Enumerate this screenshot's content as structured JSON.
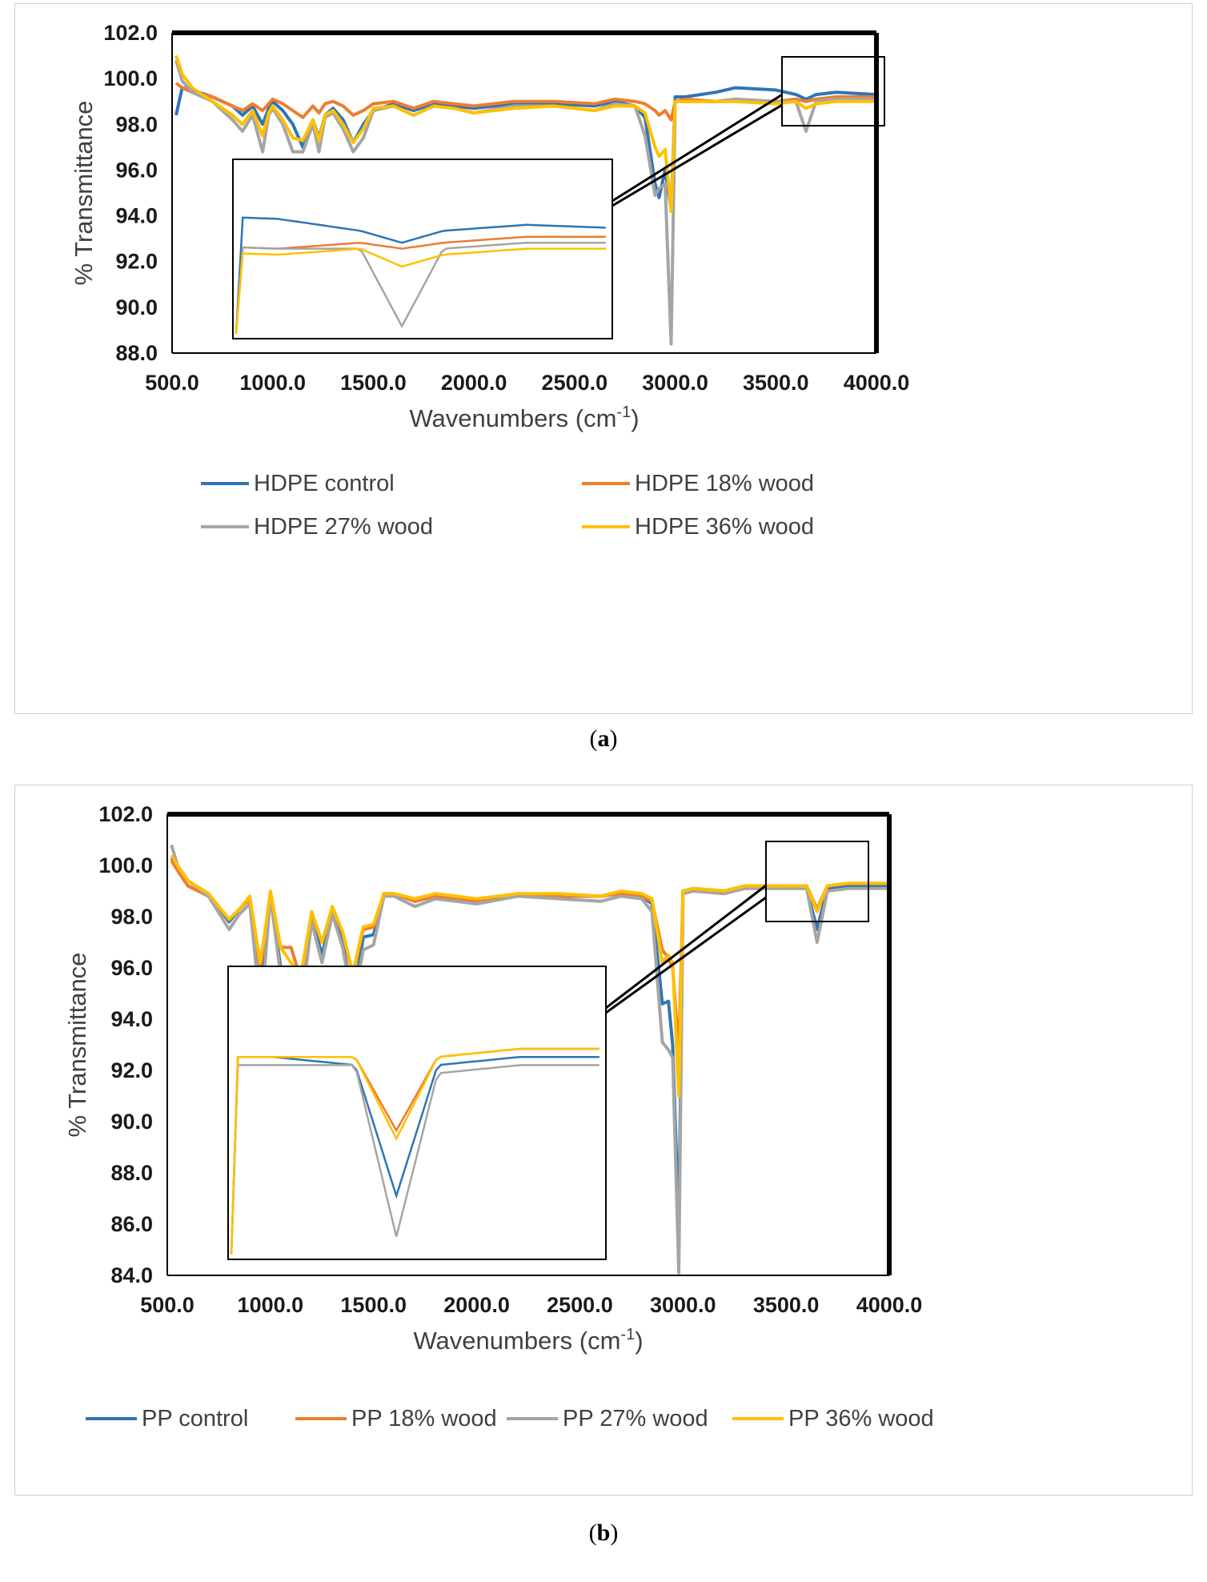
{
  "panels": [
    {
      "id": "a",
      "caption_open": "(",
      "caption_letter": "a",
      "caption_close": ")",
      "ylabel": "% Transmittance",
      "xlabel_main": "Wavenumbers (cm",
      "xlabel_sup": "-1",
      "xlabel_close": ")",
      "yticks": [
        "102.0",
        "100.0",
        "98.0",
        "96.0",
        "94.0",
        "92.0",
        "90.0",
        "88.0"
      ],
      "xticks": [
        "500.0",
        "1000.0",
        "1500.0",
        "2000.0",
        "2500.0",
        "3000.0",
        "3500.0",
        "4000.0"
      ],
      "legend": [
        "HDPE control",
        "HDPE 18% wood",
        "HDPE 27% wood",
        "HDPE 36% wood"
      ]
    },
    {
      "id": "b",
      "caption_open": "(",
      "caption_letter": "b",
      "caption_close": ")",
      "ylabel": "% Transmittance",
      "xlabel_main": "Wavenumbers (cm",
      "xlabel_sup": "-1",
      "xlabel_close": ")",
      "yticks": [
        "102.0",
        "100.0",
        "98.0",
        "96.0",
        "94.0",
        "92.0",
        "90.0",
        "88.0",
        "86.0",
        "84.0"
      ],
      "xticks": [
        "500.0",
        "1000.0",
        "1500.0",
        "2000.0",
        "2500.0",
        "3000.0",
        "3500.0",
        "4000.0"
      ],
      "legend": [
        "PP control",
        "PP 18% wood",
        "PP 27% wood",
        "PP 36% wood"
      ]
    }
  ],
  "colors": {
    "control": "#2e75b6",
    "wood18": "#ed7d31",
    "wood27": "#a5a5a5",
    "wood36": "#ffc000",
    "frame": "#000000"
  },
  "chart_data": [
    {
      "type": "line",
      "title": "",
      "xlabel": "Wavenumbers (cm-1)",
      "ylabel": "% Transmittance",
      "xlim": [
        500,
        4000
      ],
      "ylim": [
        88,
        102
      ],
      "legend_position": "bottom",
      "series": [
        {
          "name": "HDPE control",
          "x": [
            520,
            550,
            600,
            700,
            800,
            850,
            900,
            950,
            980,
            1000,
            1050,
            1100,
            1150,
            1200,
            1230,
            1260,
            1300,
            1350,
            1400,
            1450,
            1500,
            1600,
            1700,
            1800,
            1900,
            2000,
            2200,
            2400,
            2600,
            2700,
            2800,
            2850,
            2900,
            2920,
            2950,
            2980,
            3000,
            3050,
            3200,
            3300,
            3500,
            3600,
            3650,
            3700,
            3800,
            4000
          ],
          "y": [
            98.4,
            99.6,
            99.5,
            99.2,
            98.8,
            98.4,
            98.8,
            98.0,
            98.7,
            99.0,
            98.6,
            98.0,
            97.0,
            98.2,
            97.4,
            98.4,
            98.7,
            98.2,
            97.2,
            98.0,
            98.6,
            98.9,
            98.6,
            98.9,
            98.8,
            98.7,
            98.9,
            98.9,
            98.8,
            99.0,
            98.8,
            98.3,
            95.4,
            94.8,
            96.0,
            94.3,
            99.2,
            99.2,
            99.4,
            99.6,
            99.5,
            99.3,
            99.1,
            99.3,
            99.4,
            99.3
          ]
        },
        {
          "name": "HDPE 18% wood",
          "x": [
            520,
            550,
            600,
            700,
            800,
            850,
            900,
            950,
            980,
            1000,
            1050,
            1100,
            1150,
            1200,
            1230,
            1260,
            1300,
            1350,
            1400,
            1450,
            1500,
            1600,
            1700,
            1800,
            1900,
            2000,
            2200,
            2400,
            2600,
            2700,
            2800,
            2850,
            2900,
            2920,
            2950,
            2980,
            3000,
            3050,
            3200,
            3300,
            3500,
            3600,
            3650,
            3700,
            3800,
            4000
          ],
          "y": [
            99.8,
            99.6,
            99.4,
            99.2,
            98.8,
            98.6,
            98.9,
            98.6,
            98.9,
            99.1,
            98.9,
            98.6,
            98.3,
            98.8,
            98.5,
            98.9,
            99.0,
            98.8,
            98.4,
            98.6,
            98.9,
            99.0,
            98.7,
            99.0,
            98.9,
            98.8,
            99.0,
            99.0,
            98.9,
            99.1,
            99.0,
            98.9,
            98.6,
            98.4,
            98.6,
            98.2,
            99.0,
            99.1,
            99.0,
            99.1,
            99.0,
            99.1,
            99.0,
            99.1,
            99.2,
            99.2
          ]
        },
        {
          "name": "HDPE 27% wood",
          "x": [
            520,
            550,
            600,
            700,
            800,
            850,
            900,
            950,
            980,
            1000,
            1050,
            1100,
            1150,
            1200,
            1230,
            1260,
            1300,
            1350,
            1400,
            1450,
            1500,
            1600,
            1700,
            1800,
            1900,
            2000,
            2200,
            2400,
            2600,
            2700,
            2800,
            2850,
            2900,
            2920,
            2950,
            2980,
            3000,
            3050,
            3200,
            3300,
            3500,
            3600,
            3650,
            3700,
            3800,
            4000
          ],
          "y": [
            100.8,
            99.9,
            99.4,
            99.0,
            98.2,
            97.7,
            98.4,
            96.8,
            98.4,
            98.7,
            98.0,
            96.8,
            96.8,
            98.0,
            96.8,
            98.3,
            98.5,
            97.8,
            96.8,
            97.4,
            98.6,
            98.8,
            98.4,
            98.8,
            98.7,
            98.5,
            98.8,
            98.8,
            98.6,
            98.9,
            98.8,
            97.5,
            94.9,
            95.2,
            95.4,
            88.4,
            99.0,
            99.0,
            99.0,
            99.1,
            99.0,
            99.0,
            97.7,
            99.0,
            99.1,
            99.1
          ]
        },
        {
          "name": "HDPE 36% wood",
          "x": [
            520,
            550,
            600,
            700,
            800,
            850,
            900,
            950,
            980,
            1000,
            1050,
            1100,
            1150,
            1200,
            1230,
            1260,
            1300,
            1350,
            1400,
            1450,
            1500,
            1600,
            1700,
            1800,
            1900,
            2000,
            2200,
            2400,
            2600,
            2700,
            2800,
            2850,
            2900,
            2920,
            2950,
            2980,
            3000,
            3050,
            3200,
            3300,
            3500,
            3600,
            3650,
            3700,
            3800,
            4000
          ],
          "y": [
            101.0,
            100.2,
            99.6,
            99.0,
            98.4,
            98.0,
            98.6,
            97.5,
            98.5,
            98.8,
            98.2,
            97.4,
            97.3,
            98.2,
            97.3,
            98.4,
            98.6,
            98.0,
            97.2,
            97.8,
            98.7,
            98.8,
            98.4,
            98.8,
            98.7,
            98.5,
            98.7,
            98.8,
            98.6,
            98.8,
            98.8,
            98.5,
            97.0,
            96.6,
            96.9,
            94.2,
            99.0,
            99.0,
            99.0,
            99.0,
            98.9,
            99.0,
            98.7,
            98.9,
            99.0,
            99.0
          ]
        }
      ]
    },
    {
      "type": "line",
      "title": "",
      "xlabel": "Wavenumbers (cm-1)",
      "ylabel": "% Transmittance",
      "xlim": [
        500,
        4000
      ],
      "ylim": [
        84,
        102
      ],
      "legend_position": "bottom",
      "series": [
        {
          "name": "PP control",
          "x": [
            520,
            550,
            600,
            700,
            800,
            850,
            900,
            950,
            970,
            1000,
            1050,
            1100,
            1150,
            1200,
            1250,
            1300,
            1350,
            1400,
            1450,
            1500,
            1550,
            1600,
            1700,
            1800,
            1900,
            2000,
            2200,
            2400,
            2600,
            2700,
            2800,
            2850,
            2900,
            2930,
            2950,
            2980,
            3000,
            3050,
            3200,
            3300,
            3500,
            3600,
            3650,
            3700,
            3800,
            4000
          ],
          "y": [
            100.3,
            100.0,
            99.4,
            98.9,
            97.8,
            98.3,
            98.7,
            94.5,
            96.3,
            98.9,
            96.0,
            95.3,
            95.7,
            98.0,
            96.5,
            98.2,
            97.0,
            94.6,
            97.2,
            97.3,
            98.9,
            98.9,
            98.6,
            98.8,
            98.7,
            98.6,
            98.9,
            98.8,
            98.8,
            98.9,
            98.8,
            98.5,
            94.6,
            94.7,
            93.0,
            85.9,
            99.0,
            99.1,
            99.0,
            99.2,
            99.2,
            99.1,
            97.5,
            99.1,
            99.2,
            99.2
          ]
        },
        {
          "name": "PP 18% wood",
          "x": [
            520,
            550,
            600,
            700,
            800,
            850,
            900,
            950,
            970,
            1000,
            1050,
            1100,
            1150,
            1200,
            1250,
            1300,
            1350,
            1400,
            1450,
            1500,
            1550,
            1600,
            1700,
            1800,
            1900,
            2000,
            2200,
            2400,
            2600,
            2700,
            2800,
            2850,
            2900,
            2930,
            2950,
            2980,
            3000,
            3050,
            3200,
            3300,
            3500,
            3600,
            3650,
            3700,
            3800,
            4000
          ],
          "y": [
            100.2,
            99.8,
            99.2,
            98.8,
            97.9,
            98.3,
            98.7,
            96.0,
            97.0,
            98.9,
            96.8,
            96.8,
            95.5,
            98.1,
            97.0,
            98.3,
            97.4,
            95.7,
            97.5,
            97.6,
            98.9,
            98.9,
            98.6,
            98.8,
            98.7,
            98.6,
            98.9,
            98.8,
            98.8,
            98.9,
            98.8,
            98.6,
            96.7,
            96.4,
            96.0,
            92.7,
            99.0,
            99.1,
            99.0,
            99.2,
            99.2,
            99.2,
            98.3,
            99.2,
            99.3,
            99.3
          ]
        },
        {
          "name": "PP 27% wood",
          "x": [
            520,
            550,
            600,
            700,
            800,
            850,
            900,
            950,
            970,
            1000,
            1050,
            1100,
            1150,
            1200,
            1250,
            1300,
            1350,
            1400,
            1450,
            1500,
            1550,
            1600,
            1700,
            1800,
            1900,
            2000,
            2200,
            2400,
            2600,
            2700,
            2800,
            2850,
            2900,
            2930,
            2950,
            2980,
            3000,
            3050,
            3200,
            3300,
            3500,
            3600,
            3650,
            3700,
            3800,
            4000
          ],
          "y": [
            100.8,
            100.0,
            99.4,
            98.8,
            97.5,
            98.1,
            98.5,
            94.5,
            95.8,
            98.8,
            95.7,
            94.7,
            94.5,
            97.8,
            96.2,
            98.1,
            96.8,
            94.5,
            96.7,
            96.9,
            98.8,
            98.8,
            98.4,
            98.7,
            98.6,
            98.5,
            98.8,
            98.7,
            98.6,
            98.8,
            98.7,
            98.2,
            93.1,
            92.8,
            92.5,
            84.1,
            98.9,
            99.0,
            98.9,
            99.1,
            99.1,
            99.1,
            97.0,
            99.0,
            99.1,
            99.1
          ]
        },
        {
          "name": "PP 36% wood",
          "x": [
            520,
            550,
            600,
            700,
            800,
            850,
            900,
            950,
            970,
            1000,
            1050,
            1100,
            1150,
            1200,
            1250,
            1300,
            1350,
            1400,
            1450,
            1500,
            1550,
            1600,
            1700,
            1800,
            1900,
            2000,
            2200,
            2400,
            2600,
            2700,
            2800,
            2850,
            2900,
            2930,
            2950,
            2980,
            3000,
            3050,
            3200,
            3300,
            3500,
            3600,
            3650,
            3700,
            3800,
            4000
          ],
          "y": [
            100.4,
            100.0,
            99.4,
            98.9,
            97.9,
            98.3,
            98.8,
            96.2,
            97.2,
            99.0,
            96.8,
            96.2,
            95.8,
            98.2,
            97.0,
            98.4,
            97.4,
            95.8,
            97.6,
            97.7,
            98.9,
            98.9,
            98.7,
            98.9,
            98.8,
            98.7,
            98.9,
            98.9,
            98.8,
            99.0,
            98.9,
            98.7,
            96.2,
            96.5,
            96.2,
            91.0,
            99.0,
            99.1,
            99.0,
            99.2,
            99.2,
            99.2,
            98.2,
            99.2,
            99.3,
            99.3
          ]
        }
      ]
    }
  ]
}
